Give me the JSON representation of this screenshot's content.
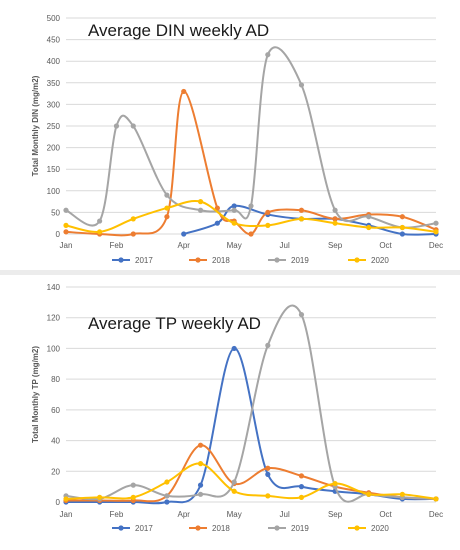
{
  "chart_data": [
    {
      "type": "line",
      "title": "Average DIN weekly AD",
      "ylabel": "Total Monthly DIN (mg/m2)",
      "xlabel": "",
      "ylim": [
        0,
        500
      ],
      "yticks": [
        "0",
        "50",
        "100",
        "150",
        "200",
        "250",
        "300",
        "350",
        "400",
        "450",
        "500"
      ],
      "xticks": [
        "Jan",
        "Feb",
        "Apr",
        "May",
        "Jul",
        "Sep",
        "Oct",
        "Dec"
      ],
      "grid": "horizontal",
      "legend": "bottom",
      "series": [
        {
          "name": "2017",
          "color": "#4472c4",
          "x": [
            3.5,
            4.5,
            5,
            6,
            7,
            8,
            9,
            10,
            11
          ],
          "y": [
            0,
            25,
            65,
            45,
            35,
            35,
            20,
            0,
            0
          ]
        },
        {
          "name": "2018",
          "color": "#ed7d31",
          "x": [
            0,
            1,
            2,
            3,
            3.5,
            4.5,
            5,
            5.5,
            6,
            7,
            8,
            9,
            10,
            11
          ],
          "y": [
            5,
            0,
            0,
            40,
            330,
            60,
            30,
            0,
            50,
            55,
            35,
            45,
            40,
            10
          ]
        },
        {
          "name": "2019",
          "color": "#a5a5a5",
          "x": [
            0,
            1,
            1.5,
            2,
            3,
            4,
            5,
            5.5,
            6,
            7,
            8,
            9,
            10,
            11
          ],
          "y": [
            55,
            30,
            250,
            250,
            90,
            55,
            55,
            65,
            415,
            345,
            55,
            40,
            15,
            25
          ]
        },
        {
          "name": "2020",
          "color": "#ffc000",
          "x": [
            0,
            1,
            2,
            3,
            4,
            5,
            6,
            7,
            8,
            9,
            10,
            11
          ],
          "y": [
            20,
            5,
            35,
            60,
            75,
            25,
            20,
            35,
            25,
            15,
            15,
            5
          ]
        }
      ]
    },
    {
      "type": "line",
      "title": "Average TP weekly AD",
      "ylabel": "Total Monthly TP (mg/m2)",
      "xlabel": "",
      "ylim": [
        0,
        140
      ],
      "yticks": [
        "0",
        "20",
        "40",
        "60",
        "80",
        "100",
        "120",
        "140"
      ],
      "xticks": [
        "Jan",
        "Feb",
        "Apr",
        "May",
        "Jul",
        "Sep",
        "Oct",
        "Dec"
      ],
      "grid": "horizontal",
      "legend": "bottom",
      "series": [
        {
          "name": "2017",
          "color": "#4472c4",
          "x": [
            0,
            1,
            2,
            3,
            4,
            5,
            6,
            7,
            8,
            9,
            10,
            11
          ],
          "y": [
            0,
            0,
            0,
            0,
            11,
            100,
            18,
            10,
            7,
            5,
            2,
            2
          ]
        },
        {
          "name": "2018",
          "color": "#ed7d31",
          "x": [
            0,
            1,
            2,
            3,
            4,
            5,
            6,
            7,
            8,
            9,
            10,
            11
          ],
          "y": [
            1,
            1,
            1,
            4,
            37,
            12,
            22,
            17,
            10,
            6,
            3,
            2
          ]
        },
        {
          "name": "2019",
          "color": "#a5a5a5",
          "x": [
            0,
            1,
            2,
            3,
            4,
            5,
            6,
            7,
            8,
            9,
            10,
            11
          ],
          "y": [
            4,
            2,
            11,
            4,
            5,
            13,
            102,
            122,
            10,
            5,
            3,
            2
          ]
        },
        {
          "name": "2020",
          "color": "#ffc000",
          "x": [
            0,
            1,
            2,
            3,
            4,
            5,
            6,
            7,
            8,
            9,
            10,
            11
          ],
          "y": [
            2,
            3,
            3,
            13,
            25,
            7,
            4,
            3,
            12,
            5,
            5,
            2
          ]
        }
      ]
    }
  ]
}
